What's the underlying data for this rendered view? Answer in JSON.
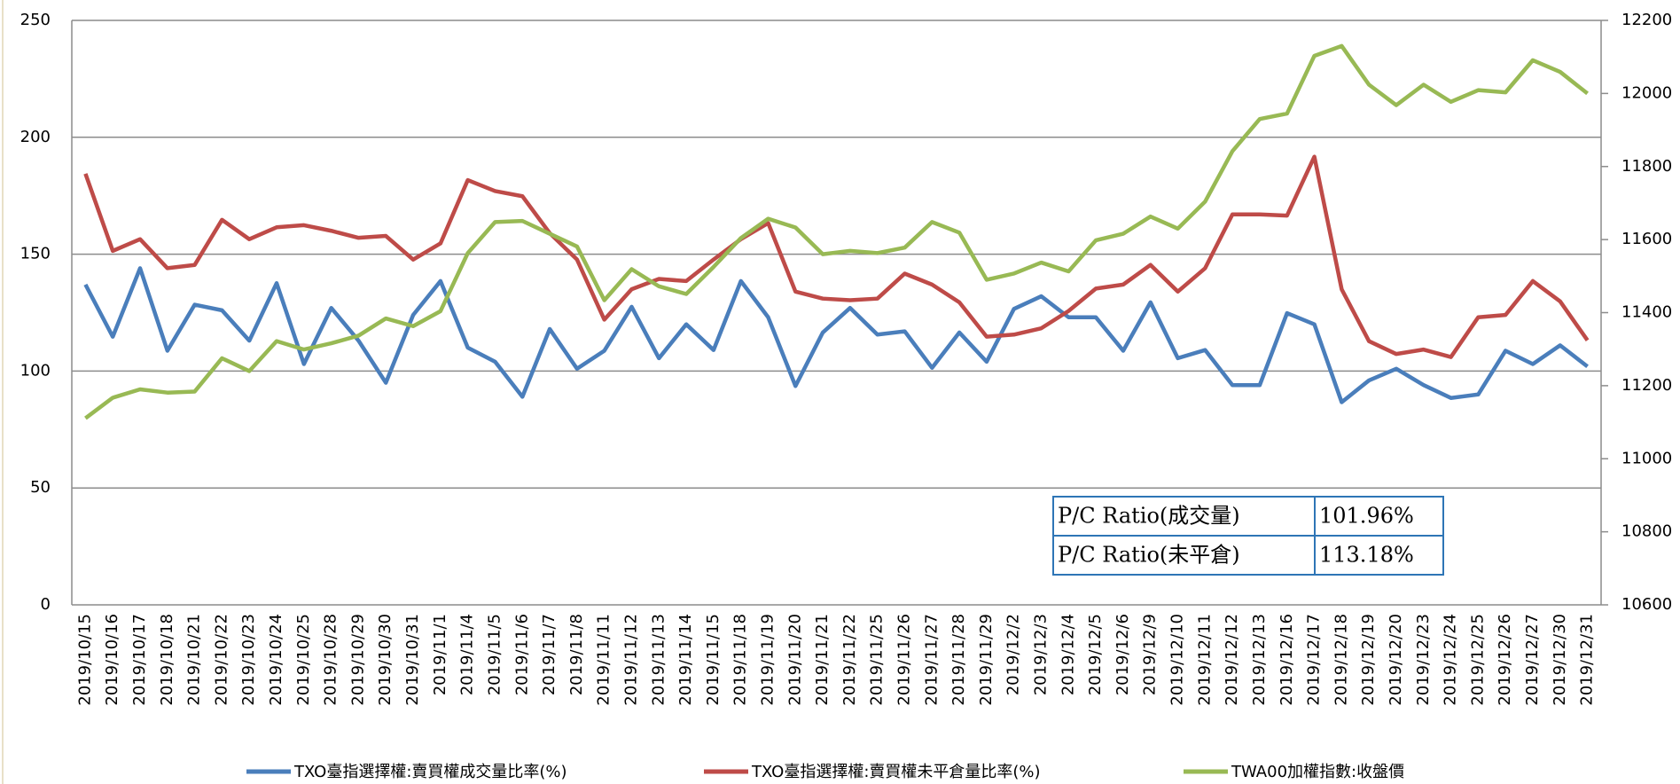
{
  "chart_data": {
    "type": "line",
    "categories": [
      "2019/10/15",
      "2019/10/16",
      "2019/10/17",
      "2019/10/18",
      "2019/10/21",
      "2019/10/22",
      "2019/10/23",
      "2019/10/24",
      "2019/10/25",
      "2019/10/28",
      "2019/10/29",
      "2019/10/30",
      "2019/10/31",
      "2019/11/1",
      "2019/11/4",
      "2019/11/5",
      "2019/11/6",
      "2019/11/7",
      "2019/11/8",
      "2019/11/11",
      "2019/11/12",
      "2019/11/13",
      "2019/11/14",
      "2019/11/15",
      "2019/11/18",
      "2019/11/19",
      "2019/11/20",
      "2019/11/21",
      "2019/11/22",
      "2019/11/25",
      "2019/11/26",
      "2019/11/27",
      "2019/11/28",
      "2019/11/29",
      "2019/12/2",
      "2019/12/3",
      "2019/12/4",
      "2019/12/5",
      "2019/12/6",
      "2019/12/9",
      "2019/12/10",
      "2019/12/11",
      "2019/12/12",
      "2019/12/13",
      "2019/12/16",
      "2019/12/17",
      "2019/12/18",
      "2019/12/19",
      "2019/12/20",
      "2019/12/23",
      "2019/12/24",
      "2019/12/25",
      "2019/12/26",
      "2019/12/27",
      "2019/12/30",
      "2019/12/31"
    ],
    "series": [
      {
        "name": "TXO臺指選擇權:賣買權成交量比率(%)",
        "color": "#4a7ebb",
        "axis": "y",
        "values": [
          137,
          114.7,
          144,
          108.7,
          128.4,
          126,
          113,
          137.6,
          103,
          127,
          113,
          95,
          124,
          138.5,
          110,
          104,
          89,
          118,
          101,
          108.7,
          127.5,
          105.5,
          120,
          109,
          138.5,
          123,
          93.6,
          116.5,
          127,
          115.6,
          117,
          101.4,
          116.5,
          104,
          126.6,
          132,
          123,
          123,
          108.7,
          129.4,
          105.5,
          109,
          94,
          94,
          124.8,
          120,
          86.7,
          96,
          101,
          94,
          88.5,
          90,
          108.7,
          103,
          111,
          101.96
        ]
      },
      {
        "name": "TXO臺指選擇權:賣買權未平倉量比率(%)",
        "color": "#be4b48",
        "axis": "y",
        "values": [
          184.4,
          151.4,
          156.4,
          144,
          145.4,
          164.7,
          156.4,
          161.5,
          162.4,
          160,
          157,
          157.8,
          147.7,
          154.6,
          181.7,
          177,
          174.8,
          159,
          147.7,
          122,
          135,
          139.4,
          138.5,
          147.7,
          156.4,
          163.3,
          134,
          131,
          130.3,
          131,
          141.7,
          137,
          129.4,
          114.7,
          115.6,
          118.3,
          125.7,
          135.3,
          137,
          145.4,
          134,
          144,
          167,
          167,
          166.5,
          191.7,
          135,
          112.8,
          107.3,
          109.2,
          106,
          123,
          124,
          138.5,
          129.8,
          113.18
        ]
      },
      {
        "name": "TWA00加權指數:收盤價",
        "color": "#98b954",
        "axis": "y2",
        "values": [
          11111,
          11167,
          11190,
          11181,
          11184,
          11275,
          11240,
          11322,
          11299,
          11316,
          11337,
          11384,
          11363,
          11404,
          11563,
          11648,
          11651,
          11616,
          11581,
          11434,
          11519,
          11472,
          11451,
          11525,
          11604,
          11657,
          11633,
          11560,
          11569,
          11563,
          11578,
          11648,
          11619,
          11490,
          11507,
          11537,
          11513,
          11598,
          11616,
          11663,
          11630,
          11704,
          11842,
          11930,
          11945,
          12103,
          12130,
          12024,
          11968,
          12024,
          11977,
          12009,
          12003,
          12091,
          12059,
          12000
        ]
      }
    ],
    "ylim": [
      0,
      250
    ],
    "yticks": [
      0,
      50,
      100,
      150,
      200,
      250
    ],
    "y2lim": [
      10600,
      12200
    ],
    "y2ticks": [
      10600,
      10800,
      11000,
      11200,
      11400,
      11600,
      11800,
      12000,
      12200
    ],
    "grid": true,
    "legend": "bottom"
  },
  "table": {
    "rows": [
      [
        "P/C Ratio(成交量)",
        "101.96%"
      ],
      [
        "P/C Ratio(未平倉)",
        "113.18%"
      ]
    ]
  }
}
